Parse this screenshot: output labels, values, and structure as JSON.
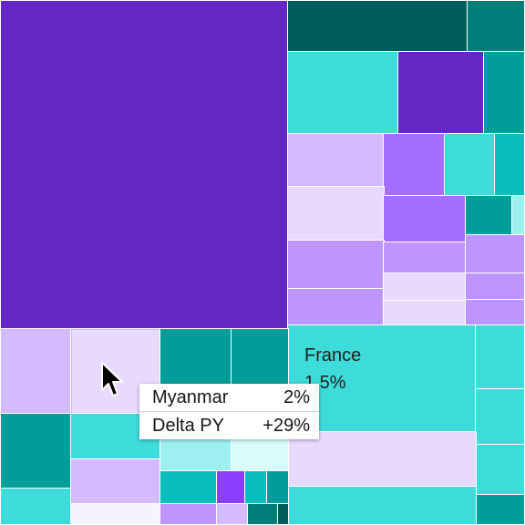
{
  "colors": {
    "purple_dark": "#6527c4",
    "purple_medium": "#a56eff",
    "purple_light": "#be95ff",
    "purple_lighter": "#d4bbff",
    "purple_pale": "#e8daff",
    "teal_dark": "#005d5d",
    "teal": "#009d9a",
    "cyan": "#08bdba",
    "cyan_light": "#3ddbd9",
    "cyan_pale": "#9ef0f0",
    "violet": "#8a3ffc"
  },
  "labeled_tile": {
    "name": "France",
    "value": "1.5%"
  },
  "tooltip": {
    "rows": [
      {
        "label": "Myanmar",
        "value": "2%"
      },
      {
        "label": "Delta PY",
        "value": "+29%"
      }
    ]
  }
}
